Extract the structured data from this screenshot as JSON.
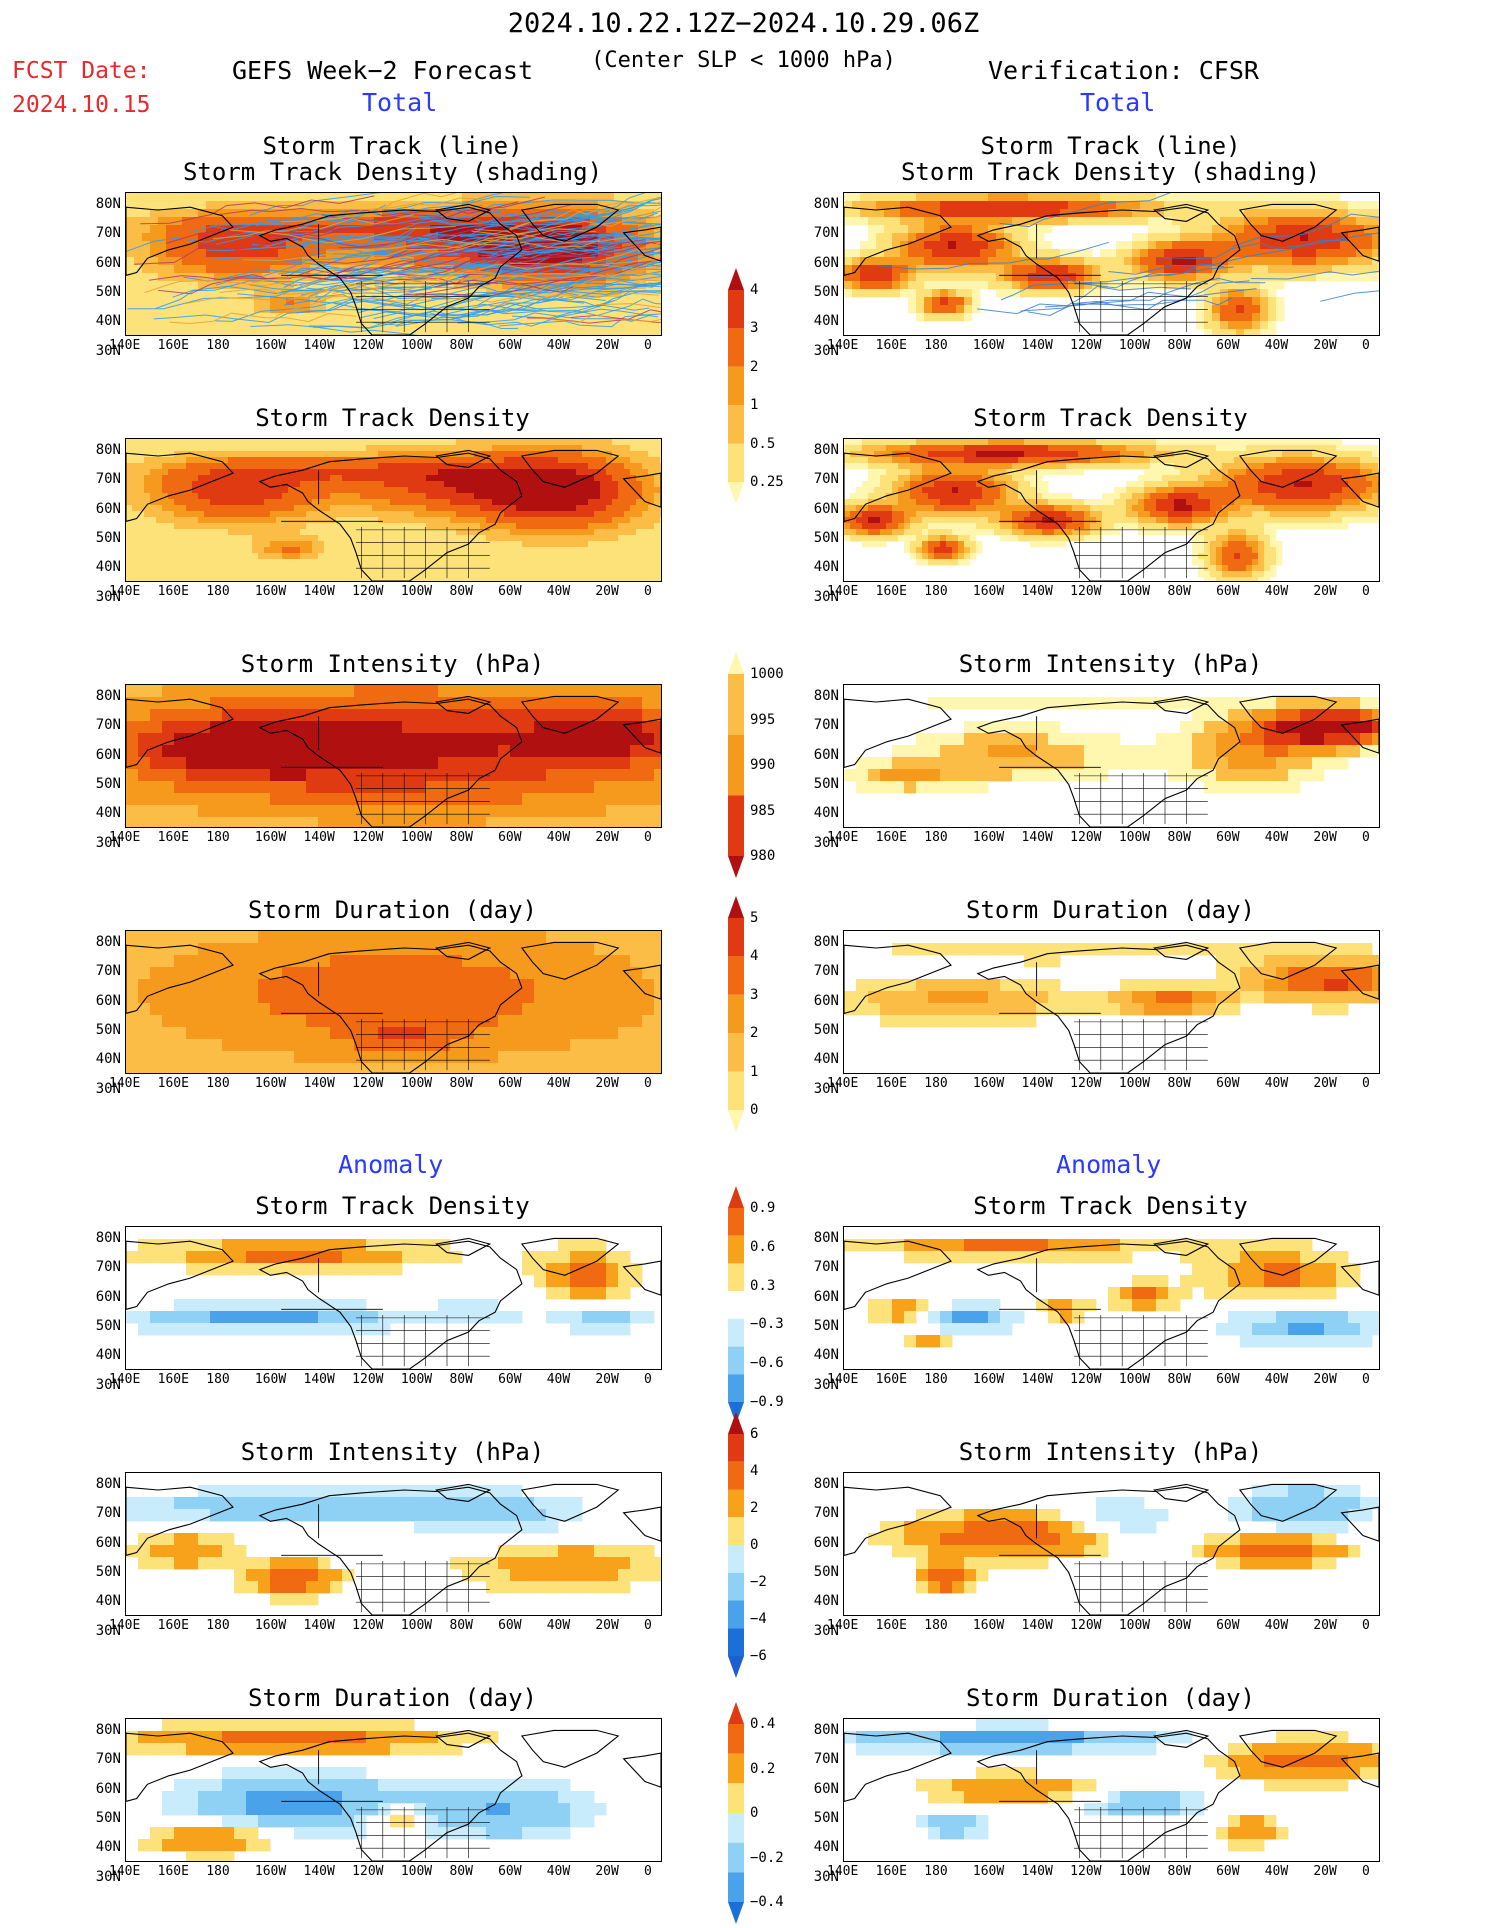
{
  "header": {
    "date_range": "2024.10.22.12Z−2024.10.29.06Z",
    "condition": "(Center SLP < 1000 hPa)",
    "fcst_label": "FCST Date:",
    "fcst_date": "2024.10.15",
    "left_title": "GEFS Week−2 Forecast",
    "right_title": "Verification: CFSR"
  },
  "sections": {
    "total": "Total",
    "anomaly": "Anomaly"
  },
  "panel_titles": {
    "track_line": "Storm Track (line)",
    "track_shading": "Storm Track Density (shading)",
    "density": "Storm Track Density",
    "intensity": "Storm Intensity (hPa)",
    "duration": "Storm Duration (day)"
  },
  "axes": {
    "lat_labels": [
      "80N",
      "70N",
      "60N",
      "50N",
      "40N",
      "30N"
    ],
    "lon_labels": [
      "140E",
      "160E",
      "180",
      "160W",
      "140W",
      "120W",
      "100W",
      "80W",
      "60W",
      "40W",
      "20W",
      "0"
    ]
  },
  "colorbars": {
    "density_total": [
      "4",
      "3",
      "2",
      "1",
      "0.5",
      "0.25"
    ],
    "intensity_total": [
      "1000",
      "995",
      "990",
      "985",
      "980"
    ],
    "duration_total": [
      "5",
      "4",
      "3",
      "2",
      "1",
      "0"
    ],
    "density_anom": [
      "0.9",
      "0.6",
      "0.3",
      "−0.3",
      "−0.6",
      "−0.9"
    ],
    "intensity_anom": [
      "6",
      "4",
      "2",
      "0",
      "−2",
      "−4",
      "−6"
    ],
    "duration_anom": [
      "0.4",
      "0.2",
      "0",
      "−0.2",
      "−0.4"
    ]
  },
  "colors": {
    "total_scale": [
      "#fff7b0",
      "#fde27a",
      "#fbbd45",
      "#f69a1e",
      "#f06a12",
      "#df3a12",
      "#b01010"
    ],
    "intensity_scale": [
      "#fff7b0",
      "#fbbd45",
      "#f69a1e",
      "#f06a12",
      "#df3a12",
      "#b01010"
    ],
    "anom_pos": [
      "#fde27a",
      "#f8a21c",
      "#f06a12",
      "#e03a12"
    ],
    "anom_neg": [
      "#c8ecfb",
      "#8fd0f5",
      "#4aa2ea",
      "#1b6fd8"
    ],
    "track_forecast": "#2a9df4",
    "track_observed": "#3a7fd0",
    "title_red": "#e8282a",
    "section_blue": "#2a3aff"
  }
}
